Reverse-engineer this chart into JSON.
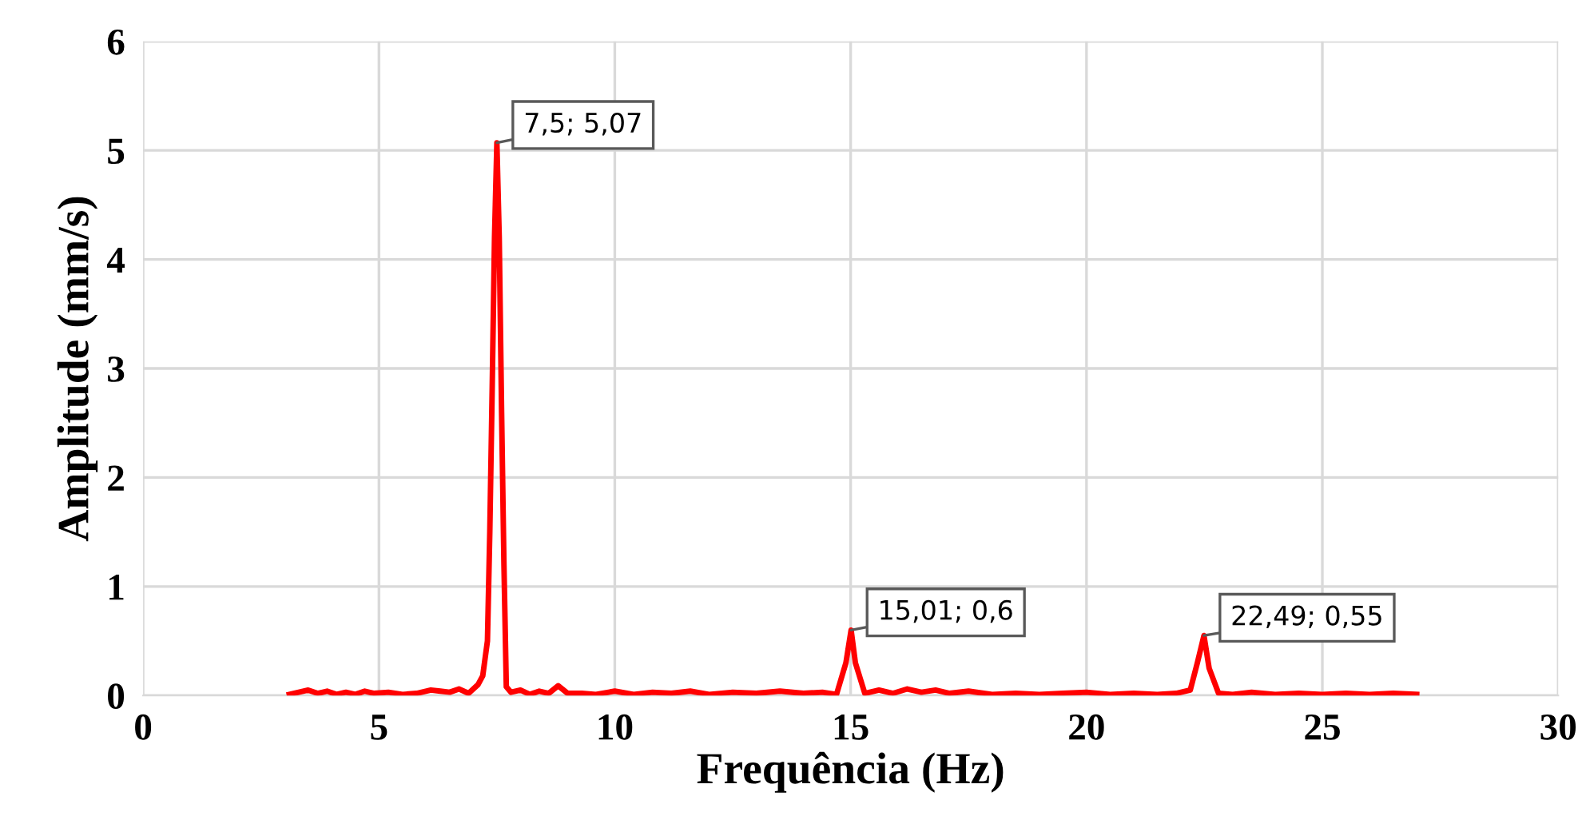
{
  "chart_data": {
    "type": "line",
    "xlabel": "Frequência (Hz)",
    "ylabel": "Amplitude (mm/s)",
    "series": [
      {
        "color": "#ff0000",
        "x": [
          3.1,
          3.3,
          3.5,
          3.7,
          3.9,
          4.1,
          4.3,
          4.5,
          4.7,
          4.9,
          5.2,
          5.5,
          5.8,
          6.1,
          6.3,
          6.5,
          6.7,
          6.9,
          7.1,
          7.2,
          7.3,
          7.35,
          7.4,
          7.45,
          7.5,
          7.55,
          7.6,
          7.65,
          7.7,
          7.8,
          8.0,
          8.2,
          8.4,
          8.6,
          8.8,
          9.0,
          9.3,
          9.6,
          10.0,
          10.4,
          10.8,
          11.2,
          11.6,
          12.0,
          12.5,
          13.0,
          13.5,
          14.0,
          14.4,
          14.7,
          14.9,
          15.01,
          15.1,
          15.3,
          15.6,
          15.9,
          16.2,
          16.5,
          16.8,
          17.1,
          17.5,
          18.0,
          18.5,
          19.0,
          19.5,
          20.0,
          20.5,
          21.0,
          21.5,
          21.9,
          22.2,
          22.35,
          22.49,
          22.6,
          22.8,
          23.1,
          23.5,
          24.0,
          24.5,
          25.0,
          25.5,
          26.0,
          26.5,
          27.0
        ],
        "values": [
          0.01,
          0.03,
          0.05,
          0.02,
          0.04,
          0.01,
          0.03,
          0.01,
          0.04,
          0.02,
          0.03,
          0.01,
          0.02,
          0.05,
          0.04,
          0.03,
          0.06,
          0.02,
          0.1,
          0.18,
          0.5,
          1.5,
          2.8,
          4.2,
          5.07,
          4.2,
          2.6,
          1.2,
          0.08,
          0.03,
          0.05,
          0.01,
          0.04,
          0.02,
          0.09,
          0.02,
          0.02,
          0.01,
          0.04,
          0.01,
          0.03,
          0.02,
          0.04,
          0.01,
          0.03,
          0.02,
          0.04,
          0.02,
          0.03,
          0.01,
          0.3,
          0.6,
          0.3,
          0.02,
          0.05,
          0.02,
          0.06,
          0.03,
          0.05,
          0.02,
          0.04,
          0.01,
          0.02,
          0.01,
          0.02,
          0.03,
          0.01,
          0.02,
          0.01,
          0.02,
          0.05,
          0.3,
          0.55,
          0.25,
          0.02,
          0.01,
          0.03,
          0.01,
          0.02,
          0.01,
          0.02,
          0.01,
          0.02,
          0.01
        ]
      }
    ],
    "annotations": [
      {
        "text": "7,5; 5,07",
        "x": 7.5,
        "y": 5.07
      },
      {
        "text": "15,01; 0,6",
        "x": 15.01,
        "y": 0.6
      },
      {
        "text": "22,49; 0,55",
        "x": 22.49,
        "y": 0.55
      }
    ],
    "xlim": [
      0,
      30
    ],
    "xticks": [
      0,
      5,
      10,
      15,
      20,
      25,
      30
    ],
    "ylim": [
      0,
      6
    ],
    "yticks": [
      0,
      1,
      2,
      3,
      4,
      5,
      6
    ],
    "grid": true,
    "marker": "none",
    "line_style": "solid"
  }
}
